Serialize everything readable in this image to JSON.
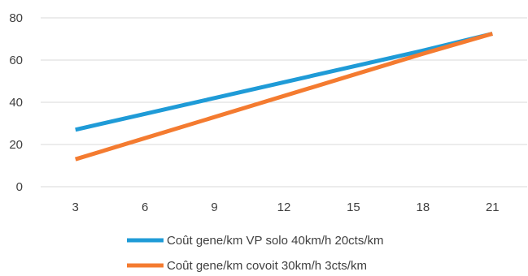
{
  "chart_data": {
    "type": "line",
    "title": "",
    "xlabel": "",
    "ylabel": "",
    "x": [
      3,
      6,
      9,
      12,
      15,
      18,
      21
    ],
    "xlim": [
      1.5,
      22.5
    ],
    "ylim": [
      0,
      80
    ],
    "yticks": [
      0,
      20,
      40,
      60,
      80
    ],
    "grid": "horizontal",
    "legend_position": "bottom",
    "series": [
      {
        "name": "Coût gene/km VP solo 40km/h 20cts/km",
        "color": "#1f9bd7",
        "values": [
          27,
          34.5,
          42,
          49.5,
          57,
          64.5,
          72.5
        ]
      },
      {
        "name": "Coût gene/km covoit 30km/h 3cts/km",
        "color": "#f47b30",
        "values": [
          13,
          23,
          33,
          43,
          53,
          63,
          72.5
        ]
      }
    ]
  }
}
